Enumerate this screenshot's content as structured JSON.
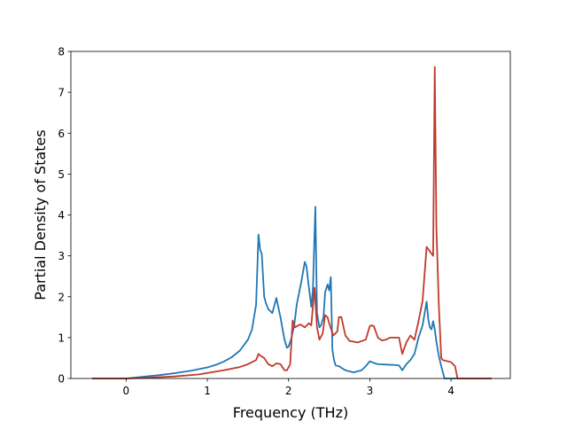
{
  "chart_data": {
    "type": "line",
    "title": "",
    "xlabel": "Frequency (THz)",
    "ylabel": "Partial Density of States",
    "xlim": [
      -0.68,
      4.73
    ],
    "ylim": [
      0,
      8
    ],
    "x_ticks": [
      0,
      1,
      2,
      3,
      4
    ],
    "y_ticks": [
      0,
      1,
      2,
      3,
      4,
      5,
      6,
      7,
      8
    ],
    "grid": false,
    "legend": "none",
    "series": [
      {
        "color": "#1f77b4",
        "x": [
          -0.42,
          0.0,
          0.2,
          0.4,
          0.6,
          0.8,
          1.0,
          1.1,
          1.2,
          1.3,
          1.4,
          1.5,
          1.55,
          1.6,
          1.63,
          1.65,
          1.67,
          1.7,
          1.72,
          1.75,
          1.8,
          1.85,
          1.9,
          1.95,
          1.98,
          2.0,
          2.03,
          2.07,
          2.1,
          2.13,
          2.16,
          2.2,
          2.22,
          2.24,
          2.28,
          2.3,
          2.33,
          2.35,
          2.38,
          2.4,
          2.43,
          2.45,
          2.48,
          2.5,
          2.52,
          2.54,
          2.56,
          2.58,
          2.62,
          2.66,
          2.7,
          2.8,
          2.9,
          2.95,
          3.0,
          3.05,
          3.1,
          3.2,
          3.3,
          3.36,
          3.4,
          3.45,
          3.5,
          3.55,
          3.6,
          3.65,
          3.7,
          3.72,
          3.74,
          3.76,
          3.78,
          3.8,
          3.82,
          3.85,
          3.88,
          3.92,
          3.95,
          4.0,
          4.1,
          4.5
        ],
        "y": [
          0,
          0,
          0.04,
          0.08,
          0.13,
          0.19,
          0.27,
          0.33,
          0.41,
          0.52,
          0.68,
          0.95,
          1.2,
          1.8,
          3.52,
          3.15,
          3.05,
          2.0,
          1.85,
          1.7,
          1.6,
          1.97,
          1.5,
          0.95,
          0.75,
          0.78,
          0.95,
          1.3,
          1.8,
          2.1,
          2.4,
          2.85,
          2.75,
          2.4,
          1.75,
          2.2,
          4.2,
          1.6,
          1.25,
          1.3,
          1.5,
          2.1,
          2.3,
          2.15,
          2.48,
          0.7,
          0.45,
          0.32,
          0.3,
          0.25,
          0.2,
          0.15,
          0.2,
          0.3,
          0.42,
          0.38,
          0.35,
          0.34,
          0.33,
          0.32,
          0.2,
          0.35,
          0.45,
          0.6,
          1.0,
          1.3,
          1.88,
          1.45,
          1.25,
          1.2,
          1.4,
          1.2,
          0.9,
          0.55,
          0.3,
          0.0,
          0,
          0,
          0,
          0
        ]
      },
      {
        "color": "#c0392b",
        "x": [
          -0.42,
          0.0,
          0.3,
          0.6,
          0.9,
          1.2,
          1.4,
          1.5,
          1.55,
          1.6,
          1.63,
          1.66,
          1.7,
          1.75,
          1.8,
          1.85,
          1.9,
          1.95,
          1.98,
          2.02,
          2.05,
          2.08,
          2.12,
          2.15,
          2.2,
          2.25,
          2.28,
          2.32,
          2.35,
          2.38,
          2.42,
          2.45,
          2.48,
          2.5,
          2.55,
          2.6,
          2.62,
          2.65,
          2.7,
          2.75,
          2.85,
          2.95,
          3.0,
          3.02,
          3.05,
          3.1,
          3.15,
          3.2,
          3.25,
          3.3,
          3.36,
          3.4,
          3.45,
          3.5,
          3.55,
          3.6,
          3.65,
          3.7,
          3.75,
          3.78,
          3.8,
          3.82,
          3.85,
          3.88,
          3.9,
          3.92,
          4.0,
          4.05,
          4.08,
          4.5
        ],
        "y": [
          0,
          0,
          0.02,
          0.05,
          0.1,
          0.2,
          0.28,
          0.35,
          0.4,
          0.45,
          0.6,
          0.55,
          0.5,
          0.35,
          0.3,
          0.37,
          0.35,
          0.2,
          0.2,
          0.35,
          1.42,
          1.25,
          1.3,
          1.32,
          1.25,
          1.35,
          1.3,
          2.22,
          1.25,
          0.95,
          1.1,
          1.55,
          1.5,
          1.35,
          1.05,
          1.15,
          1.5,
          1.5,
          1.05,
          0.92,
          0.88,
          0.95,
          1.28,
          1.3,
          1.28,
          1.0,
          0.93,
          0.95,
          1.0,
          1.0,
          1.0,
          0.6,
          0.88,
          1.05,
          0.95,
          1.4,
          1.9,
          3.22,
          3.08,
          3.0,
          7.62,
          3.7,
          1.8,
          0.5,
          0.45,
          0.44,
          0.4,
          0.3,
          0.0,
          0
        ]
      }
    ]
  }
}
